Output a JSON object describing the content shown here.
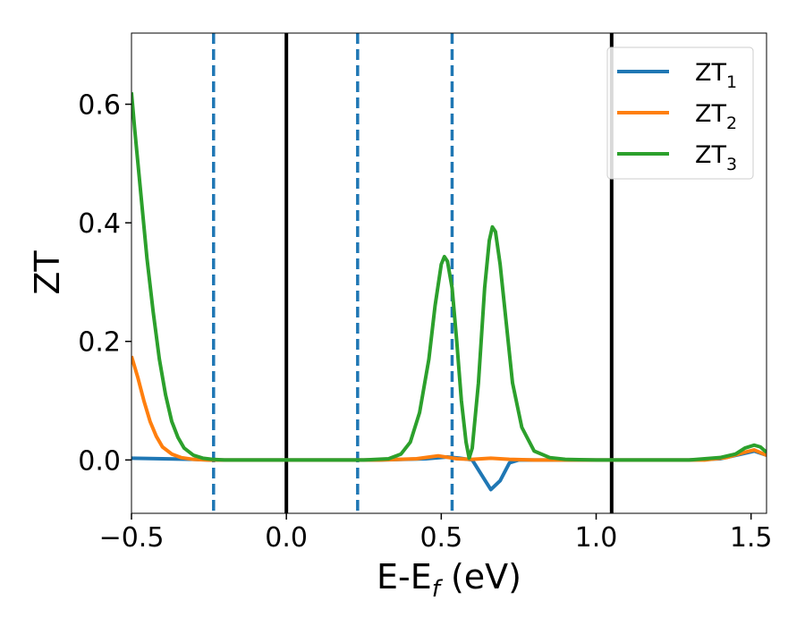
{
  "chart_data": {
    "type": "line",
    "xlabel": "E-E",
    "xlabel_sub": "f",
    "xlabel_unit": " (eV)",
    "ylabel": "ZT",
    "xlim": [
      -0.5,
      1.55
    ],
    "ylim": [
      -0.09,
      0.72
    ],
    "xticks": [
      -0.5,
      0.0,
      0.5,
      1.0,
      1.5
    ],
    "xtick_labels": [
      "−0.5",
      "0.0",
      "0.5",
      "1.0",
      "1.5"
    ],
    "yticks": [
      0.0,
      0.2,
      0.4,
      0.6
    ],
    "ytick_labels": [
      "0.0",
      "0.2",
      "0.4",
      "0.6"
    ],
    "grid": false,
    "legend_position": "top-right",
    "series": [
      {
        "name": "ZT",
        "name_sub": "1",
        "color": "#1f77b4",
        "points": [
          [
            -0.5,
            0.003
          ],
          [
            -0.4,
            0.002
          ],
          [
            -0.3,
            0.001
          ],
          [
            -0.25,
            0.0
          ],
          [
            0.0,
            0.0
          ],
          [
            0.3,
            0.0
          ],
          [
            0.45,
            0.002
          ],
          [
            0.52,
            0.005
          ],
          [
            0.56,
            0.003
          ],
          [
            0.6,
            0.0
          ],
          [
            0.63,
            -0.025
          ],
          [
            0.66,
            -0.05
          ],
          [
            0.69,
            -0.035
          ],
          [
            0.72,
            -0.005
          ],
          [
            0.75,
            0.0
          ],
          [
            1.0,
            0.0
          ],
          [
            1.3,
            0.0
          ],
          [
            1.4,
            0.002
          ],
          [
            1.47,
            0.01
          ],
          [
            1.51,
            0.015
          ],
          [
            1.55,
            0.008
          ]
        ]
      },
      {
        "name": "ZT",
        "name_sub": "2",
        "color": "#ff7f0e",
        "points": [
          [
            -0.5,
            0.175
          ],
          [
            -0.48,
            0.14
          ],
          [
            -0.46,
            0.1
          ],
          [
            -0.44,
            0.065
          ],
          [
            -0.42,
            0.04
          ],
          [
            -0.4,
            0.022
          ],
          [
            -0.37,
            0.01
          ],
          [
            -0.34,
            0.004
          ],
          [
            -0.3,
            0.001
          ],
          [
            -0.25,
            0.0
          ],
          [
            0.0,
            0.0
          ],
          [
            0.3,
            0.0
          ],
          [
            0.42,
            0.002
          ],
          [
            0.49,
            0.007
          ],
          [
            0.55,
            0.002
          ],
          [
            0.6,
            0.001
          ],
          [
            0.66,
            0.003
          ],
          [
            0.72,
            0.001
          ],
          [
            0.8,
            0.0
          ],
          [
            1.0,
            0.0
          ],
          [
            1.35,
            0.0
          ],
          [
            1.42,
            0.004
          ],
          [
            1.48,
            0.013
          ],
          [
            1.51,
            0.017
          ],
          [
            1.55,
            0.008
          ]
        ]
      },
      {
        "name": "ZT",
        "name_sub": "3",
        "color": "#2ca02c",
        "points": [
          [
            -0.5,
            0.62
          ],
          [
            -0.49,
            0.56
          ],
          [
            -0.47,
            0.45
          ],
          [
            -0.45,
            0.34
          ],
          [
            -0.43,
            0.25
          ],
          [
            -0.41,
            0.17
          ],
          [
            -0.39,
            0.11
          ],
          [
            -0.37,
            0.065
          ],
          [
            -0.35,
            0.038
          ],
          [
            -0.33,
            0.02
          ],
          [
            -0.3,
            0.008
          ],
          [
            -0.27,
            0.003
          ],
          [
            -0.24,
            0.001
          ],
          [
            -0.2,
            0.0
          ],
          [
            0.0,
            0.0
          ],
          [
            0.25,
            0.0
          ],
          [
            0.33,
            0.002
          ],
          [
            0.37,
            0.01
          ],
          [
            0.4,
            0.03
          ],
          [
            0.43,
            0.08
          ],
          [
            0.46,
            0.17
          ],
          [
            0.48,
            0.26
          ],
          [
            0.5,
            0.33
          ],
          [
            0.51,
            0.343
          ],
          [
            0.52,
            0.335
          ],
          [
            0.535,
            0.29
          ],
          [
            0.55,
            0.2
          ],
          [
            0.565,
            0.1
          ],
          [
            0.58,
            0.03
          ],
          [
            0.59,
            0.003
          ],
          [
            0.6,
            0.02
          ],
          [
            0.62,
            0.13
          ],
          [
            0.64,
            0.29
          ],
          [
            0.655,
            0.37
          ],
          [
            0.665,
            0.393
          ],
          [
            0.675,
            0.385
          ],
          [
            0.69,
            0.33
          ],
          [
            0.71,
            0.23
          ],
          [
            0.73,
            0.13
          ],
          [
            0.76,
            0.055
          ],
          [
            0.8,
            0.015
          ],
          [
            0.85,
            0.004
          ],
          [
            0.9,
            0.001
          ],
          [
            1.0,
            0.0
          ],
          [
            1.3,
            0.0
          ],
          [
            1.4,
            0.004
          ],
          [
            1.45,
            0.01
          ],
          [
            1.48,
            0.02
          ],
          [
            1.51,
            0.025
          ],
          [
            1.53,
            0.022
          ],
          [
            1.55,
            0.013
          ]
        ]
      }
    ],
    "vlines": [
      {
        "x": -0.235,
        "style": "dashed",
        "color": "#1f77b4"
      },
      {
        "x": 0.0,
        "style": "solid",
        "color": "#000000"
      },
      {
        "x": 0.23,
        "style": "dashed",
        "color": "#1f77b4"
      },
      {
        "x": 0.535,
        "style": "dashed",
        "color": "#1f77b4"
      },
      {
        "x": 1.05,
        "style": "solid",
        "color": "#000000"
      }
    ]
  }
}
